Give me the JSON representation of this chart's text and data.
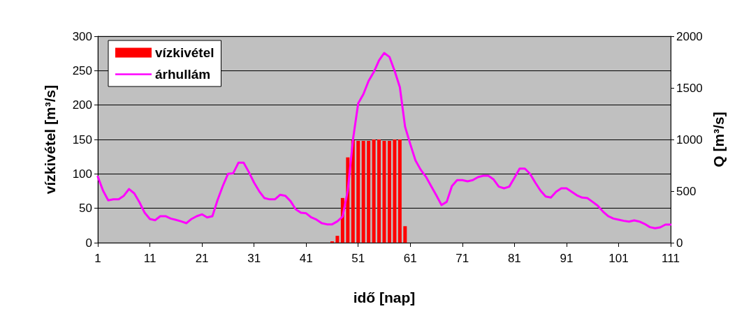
{
  "chart_data": {
    "type": "bar",
    "xlabel": "idő [nap]",
    "ylabel": "vízkivétel [m³/s]",
    "y2label": "Q [m³/s]",
    "x": [
      1,
      2,
      3,
      4,
      5,
      6,
      7,
      8,
      9,
      10,
      11,
      12,
      13,
      14,
      15,
      16,
      17,
      18,
      19,
      20,
      21,
      22,
      23,
      24,
      25,
      26,
      27,
      28,
      29,
      30,
      31,
      32,
      33,
      34,
      35,
      36,
      37,
      38,
      39,
      40,
      41,
      42,
      43,
      44,
      45,
      46,
      47,
      48,
      49,
      50,
      51,
      52,
      53,
      54,
      55,
      56,
      57,
      58,
      59,
      60,
      61,
      62,
      63,
      64,
      65,
      66,
      67,
      68,
      69,
      70,
      71,
      72,
      73,
      74,
      75,
      76,
      77,
      78,
      79,
      80,
      81,
      82,
      83,
      84,
      85,
      86,
      87,
      88,
      89,
      90,
      91,
      92,
      93,
      94,
      95,
      96,
      97,
      98,
      99,
      100,
      101,
      102,
      103,
      104,
      105,
      106,
      107,
      108,
      109,
      110,
      111
    ],
    "xlim": [
      1,
      111
    ],
    "xticks": [
      1,
      11,
      21,
      31,
      41,
      51,
      61,
      71,
      81,
      91,
      101,
      111
    ],
    "series": [
      {
        "name": "vízkivétel",
        "color": "#ff0000",
        "values": [
          null,
          null,
          null,
          null,
          null,
          null,
          null,
          null,
          null,
          null,
          null,
          null,
          null,
          null,
          null,
          null,
          null,
          null,
          null,
          null,
          null,
          null,
          null,
          null,
          null,
          null,
          null,
          null,
          null,
          null,
          null,
          null,
          null,
          null,
          null,
          null,
          null,
          null,
          null,
          null,
          null,
          null,
          null,
          null,
          null,
          2,
          10,
          65,
          124,
          149,
          148,
          148,
          148,
          150,
          150,
          148,
          148,
          150,
          150,
          24,
          null,
          null,
          null,
          null,
          null,
          null,
          null,
          null,
          null,
          null,
          null,
          null,
          null,
          null,
          null,
          null,
          null,
          null,
          null,
          null,
          null,
          null,
          null,
          null,
          null,
          null,
          null,
          null,
          null,
          null,
          null,
          null,
          null,
          null,
          null,
          null,
          null,
          null,
          null,
          null,
          null,
          null,
          null,
          null,
          null,
          null,
          null,
          null,
          null,
          null,
          null
        ]
      },
      {
        "name": "árhullám",
        "type": "line",
        "axis": "y2",
        "color": "#ff00ff",
        "values": [
          640,
          505,
          410,
          420,
          420,
          455,
          520,
          478,
          392,
          290,
          230,
          218,
          257,
          257,
          234,
          221,
          207,
          189,
          230,
          257,
          275,
          245,
          257,
          414,
          549,
          667,
          673,
          775,
          775,
          685,
          583,
          498,
          432,
          420,
          420,
          464,
          455,
          403,
          324,
          290,
          285,
          245,
          223,
          189,
          178,
          178,
          207,
          252,
          505,
          1000,
          1349,
          1439,
          1568,
          1653,
          1766,
          1838,
          1800,
          1664,
          1507,
          1124,
          955,
          797,
          707,
          640,
          549,
          459,
          365,
          396,
          549,
          606,
          606,
          595,
          606,
          635,
          649,
          649,
          613,
          543,
          527,
          543,
          628,
          718,
          718,
          667,
          583,
          505,
          448,
          437,
          493,
          527,
          527,
          493,
          459,
          437,
          432,
          396,
          358,
          302,
          257,
          234,
          223,
          212,
          205,
          216,
          205,
          182,
          151,
          140,
          149,
          176,
          176
        ]
      }
    ],
    "ylim": [
      0,
      300
    ],
    "yticks": [
      0,
      50,
      100,
      150,
      200,
      250,
      300
    ],
    "y2lim": [
      0,
      2000
    ],
    "y2ticks": [
      0,
      500,
      1000,
      1500,
      2000
    ],
    "grid": "y",
    "legend": "top left",
    "marker": "none",
    "line_style": "solid"
  }
}
